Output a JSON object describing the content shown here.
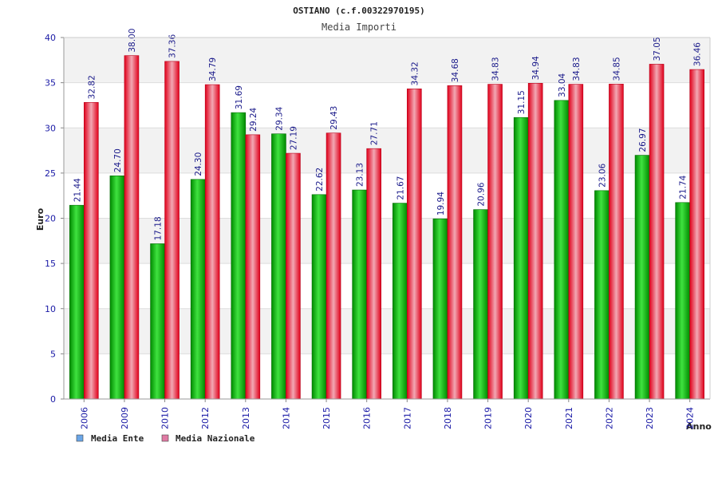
{
  "chart_data": {
    "type": "bar",
    "title": "OSTIANO (c.f.00322970195)",
    "subtitle": "Media Importi",
    "xlabel": "Anno",
    "ylabel": "Euro",
    "ylim": [
      0,
      40
    ],
    "yticks": [
      "0",
      "5",
      "10",
      "15",
      "20",
      "25",
      "30",
      "35",
      "40"
    ],
    "categories": [
      "2006",
      "2009",
      "2010",
      "2012",
      "2013",
      "2014",
      "2015",
      "2016",
      "2017",
      "2018",
      "2019",
      "2020",
      "2021",
      "2022",
      "2023",
      "2024"
    ],
    "series": [
      {
        "name": "Media Ente",
        "color": "#00a000",
        "values": [
          21.44,
          24.7,
          17.18,
          24.3,
          31.69,
          29.34,
          22.62,
          23.13,
          21.67,
          19.94,
          20.96,
          31.15,
          33.04,
          23.06,
          26.97,
          21.74
        ],
        "labels": [
          "21.44",
          "24.70",
          "17.18",
          "24.30",
          "31.69",
          "29.34",
          "22.62",
          "23.13",
          "21.67",
          "19.94",
          "20.96",
          "31.15",
          "33.04",
          "23.06",
          "26.97",
          "21.74"
        ]
      },
      {
        "name": "Media Nazionale",
        "color": "#e8102a",
        "values": [
          32.82,
          38.0,
          37.36,
          34.79,
          29.24,
          27.19,
          29.43,
          27.71,
          34.32,
          34.68,
          34.83,
          34.94,
          34.83,
          34.85,
          37.05,
          36.46
        ],
        "labels": [
          "32.82",
          "38.00",
          "37.36",
          "34.79",
          "29.24",
          "27.19",
          "29.43",
          "27.71",
          "34.32",
          "34.68",
          "34.83",
          "34.94",
          "34.83",
          "34.85",
          "37.05",
          "36.46"
        ]
      }
    ],
    "legend": {
      "placement": "bottom-left",
      "items": [
        {
          "label": "Media Ente",
          "color": "#6aa6e8"
        },
        {
          "label": "Media Nazionale",
          "color": "#e07aa4"
        }
      ]
    },
    "grid": true,
    "band_colors": [
      "#f2f2f2",
      "#ffffff"
    ]
  }
}
